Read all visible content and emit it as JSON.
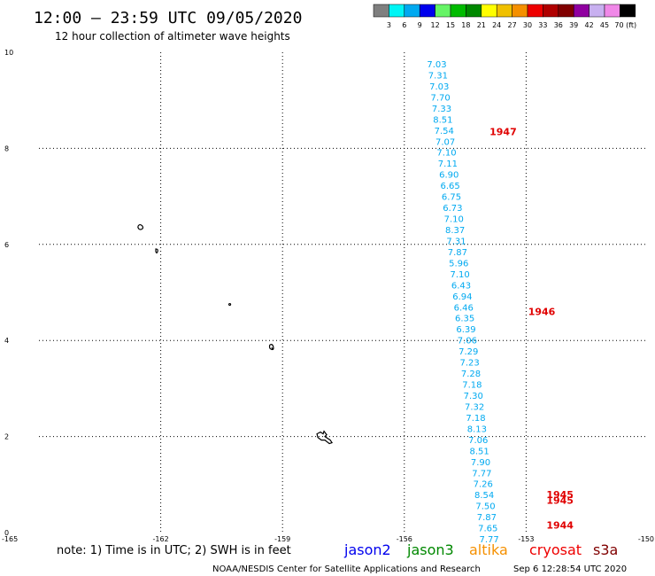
{
  "header": {
    "title": "12:00 – 23:59 UTC 09/05/2020",
    "subtitle": "12 hour collection of altimeter wave heights"
  },
  "colorbar": {
    "colors": [
      "#7f7f7f",
      "#00f5f5",
      "#00a9f0",
      "#0000ee",
      "#66f466",
      "#00bb00",
      "#008800",
      "#ffff00",
      "#f0c000",
      "#f59000",
      "#ee0000",
      "#b00000",
      "#800000",
      "#9000a0",
      "#c8b0f0",
      "#f088e8",
      "#000000"
    ],
    "labels": [
      "3",
      "6",
      "9",
      "12",
      "15",
      "18",
      "21",
      "24",
      "27",
      "30",
      "33",
      "36",
      "39",
      "42",
      "45",
      "70 (ft)"
    ]
  },
  "chart_data": {
    "type": "scatter",
    "xlim": [
      -165,
      -150
    ],
    "ylim": [
      0,
      10
    ],
    "x_ticks": [
      "-165",
      "-162",
      "-159",
      "-156",
      "-153",
      "-150"
    ],
    "y_ticks": [
      "0",
      "2",
      "4",
      "6",
      "8",
      "10"
    ],
    "grid": true,
    "swh_color": "#00a9f0",
    "swh_values": [
      "7.03",
      "7.31",
      "7.03",
      "7.70",
      "7.33",
      "8.51",
      "7.54",
      "7.07",
      "7.10",
      "7.11",
      "6.90",
      "6.65",
      "6.75",
      "6.73",
      "7.10",
      "8.37",
      "7.31",
      "7.87",
      "5.96",
      "7.10",
      "6.43",
      "6.94",
      "6.46",
      "6.35",
      "6.39",
      "7.06",
      "7.29",
      "7.23",
      "7.28",
      "7.18",
      "7.30",
      "7.32",
      "7.18",
      "8.13",
      "7.06",
      "8.51",
      "7.90",
      "7.77",
      "7.26",
      "8.54",
      "7.50",
      "7.87",
      "7.65",
      "7.77"
    ],
    "swh_points": [
      {
        "x": -155.2,
        "y": 9.76
      },
      {
        "x": -155.17,
        "y": 9.53
      },
      {
        "x": -155.14,
        "y": 9.3
      },
      {
        "x": -155.11,
        "y": 9.07
      },
      {
        "x": -155.08,
        "y": 8.84
      },
      {
        "x": -155.05,
        "y": 8.61
      },
      {
        "x": -155.02,
        "y": 8.38
      },
      {
        "x": -154.99,
        "y": 8.15
      },
      {
        "x": -154.96,
        "y": 7.92
      },
      {
        "x": -154.93,
        "y": 7.69
      },
      {
        "x": -154.9,
        "y": 7.46
      },
      {
        "x": -154.87,
        "y": 7.23
      },
      {
        "x": -154.84,
        "y": 7.0
      },
      {
        "x": -154.81,
        "y": 6.77
      },
      {
        "x": -154.78,
        "y": 6.54
      },
      {
        "x": -154.75,
        "y": 6.31
      },
      {
        "x": -154.72,
        "y": 6.08
      },
      {
        "x": -154.69,
        "y": 5.85
      },
      {
        "x": -154.66,
        "y": 5.62
      },
      {
        "x": -154.63,
        "y": 5.39
      },
      {
        "x": -154.6,
        "y": 5.16
      },
      {
        "x": -154.57,
        "y": 4.93
      },
      {
        "x": -154.54,
        "y": 4.7
      },
      {
        "x": -154.51,
        "y": 4.47
      },
      {
        "x": -154.48,
        "y": 4.24
      },
      {
        "x": -154.45,
        "y": 4.01
      },
      {
        "x": -154.42,
        "y": 3.78
      },
      {
        "x": -154.39,
        "y": 3.55
      },
      {
        "x": -154.36,
        "y": 3.32
      },
      {
        "x": -154.33,
        "y": 3.09
      },
      {
        "x": -154.3,
        "y": 2.86
      },
      {
        "x": -154.27,
        "y": 2.63
      },
      {
        "x": -154.24,
        "y": 2.4
      },
      {
        "x": -154.21,
        "y": 2.17
      },
      {
        "x": -154.18,
        "y": 1.94
      },
      {
        "x": -154.15,
        "y": 1.71
      },
      {
        "x": -154.12,
        "y": 1.48
      },
      {
        "x": -154.09,
        "y": 1.25
      },
      {
        "x": -154.06,
        "y": 1.02
      },
      {
        "x": -154.03,
        "y": 0.79
      },
      {
        "x": -154.0,
        "y": 0.56
      },
      {
        "x": -153.97,
        "y": 0.33
      },
      {
        "x": -153.94,
        "y": 0.1
      },
      {
        "x": -153.91,
        "y": -0.13
      }
    ],
    "time_labels": [
      {
        "text": "1947",
        "x": -153.9,
        "y": 8.35
      },
      {
        "text": "1946",
        "x": -152.95,
        "y": 4.6
      },
      {
        "text": "1945",
        "x": -152.5,
        "y": 0.79
      },
      {
        "text": "1945",
        "x": -152.5,
        "y": 0.67
      },
      {
        "text": "1944",
        "x": -152.5,
        "y": 0.16
      }
    ],
    "islands": [
      {
        "x": -162.5,
        "y": 6.35
      },
      {
        "x": -162.1,
        "y": 5.85
      },
      {
        "x": -160.3,
        "y": 4.75
      },
      {
        "x": -159.25,
        "y": 3.85
      },
      {
        "x": -158.0,
        "y": 2.0
      }
    ]
  },
  "note": {
    "text": "note:  1) Time is in UTC;  2) SWH is in feet"
  },
  "satellites": [
    {
      "name": "jason2",
      "color": "#0000ee"
    },
    {
      "name": "jason3",
      "color": "#008800"
    },
    {
      "name": "altika",
      "color": "#f59000"
    },
    {
      "name": "cryosat",
      "color": "#ee0000"
    },
    {
      "name": "s3a",
      "color": "#800000"
    }
  ],
  "footer": {
    "credit": "NOAA/NESDIS Center for Satellite Applications and Research",
    "timestamp": "Sep  6 12:28:54 UTC 2020"
  }
}
